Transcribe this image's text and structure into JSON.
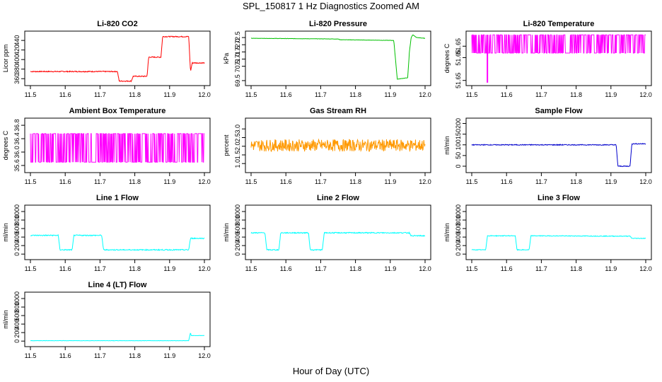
{
  "title": "SPL_150817  1 Hz Diagnostics Zoomed AM",
  "xlabel": "Hour of Day (UTC)",
  "chart_data": [
    {
      "type": "line",
      "title": "Li-820 CO2",
      "ylabel": "Licor ppm",
      "color": "#ff0000",
      "xlim": [
        11.5,
        12.0
      ],
      "ylim": [
        350,
        455
      ],
      "yticks": [
        "360",
        "380",
        "400",
        "420",
        "440"
      ],
      "yvals": [
        360,
        380,
        400,
        420,
        440
      ],
      "xticks": [
        "11.5",
        "11.6",
        "11.7",
        "11.8",
        "11.9",
        "12.0"
      ],
      "series": [
        {
          "x": [
            11.5,
            11.75,
            11.755,
            11.79,
            11.795,
            11.835,
            11.84,
            11.875,
            11.88,
            11.955,
            11.96,
            11.965,
            12.0
          ],
          "values": [
            375,
            375,
            355,
            355,
            365,
            365,
            405,
            405,
            448,
            448,
            375,
            393,
            393
          ],
          "noise": 1.0
        }
      ]
    },
    {
      "type": "line",
      "title": "Li-820 Pressure",
      "ylabel": "kPa",
      "color": "#00c000",
      "xlim": [
        11.5,
        12.0
      ],
      "ylim": [
        69.3,
        72.8
      ],
      "yticks": [
        "69.5",
        "70.5",
        "71.0",
        "71.5",
        "72.0",
        "72.5"
      ],
      "yvals": [
        69.5,
        70.5,
        71.0,
        71.5,
        72.0,
        72.5
      ],
      "xticks": [
        "11.5",
        "11.6",
        "11.7",
        "11.8",
        "11.9",
        "12.0"
      ],
      "series": [
        {
          "x": [
            11.5,
            11.75,
            11.755,
            11.91,
            11.915,
            11.92,
            11.95,
            11.955,
            11.96,
            11.965,
            11.975,
            12.0
          ],
          "values": [
            72.45,
            72.4,
            72.35,
            72.3,
            71.0,
            69.6,
            69.7,
            71.5,
            72.5,
            72.7,
            72.5,
            72.45
          ],
          "noise": 0.01
        }
      ]
    },
    {
      "type": "line",
      "title": "Li-820 Temperature",
      "ylabel": "degrees C",
      "color": "#ff00ff",
      "xlim": [
        11.5,
        12.0
      ],
      "ylim": [
        51.6496,
        51.6562
      ],
      "yticks": [
        "51.65",
        "51.65",
        "51.65"
      ],
      "yvals": [
        51.65,
        51.653,
        51.6545
      ],
      "xticks": [
        "11.5",
        "11.6",
        "11.7",
        "11.8",
        "11.9",
        "12.0"
      ],
      "series": [
        {
          "x": [
            11.5,
            12.0
          ],
          "values": [
            51.6535,
            51.6535
          ],
          "noise": 0.0,
          "binary": [
            51.6536,
            51.656
          ],
          "dip": [
            11.545,
            51.6497
          ]
        }
      ]
    },
    {
      "type": "line",
      "title": "Ambient Box Temperature",
      "ylabel": "degrees C",
      "color": "#ff00ff",
      "xlim": [
        11.5,
        12.0
      ],
      "ylim": [
        35.45,
        36.95
      ],
      "yticks": [
        "35.6",
        "36.0",
        "36.4",
        "36.8"
      ],
      "yvals": [
        35.6,
        36.0,
        36.4,
        36.8
      ],
      "xticks": [
        "11.5",
        "11.6",
        "11.7",
        "11.8",
        "11.9",
        "12.0"
      ],
      "series": [
        {
          "x": [
            11.5,
            12.0
          ],
          "values": [
            36.1,
            36.1
          ],
          "noise": 0.0,
          "binary": [
            35.7,
            36.55
          ]
        }
      ]
    },
    {
      "type": "line",
      "title": "Gas Stream RH",
      "ylabel": "percent",
      "color": "#ff9900",
      "xlim": [
        11.5,
        12.0
      ],
      "ylim": [
        0.6,
        3.5
      ],
      "yticks": [
        "1.0",
        "1.5",
        "2.0",
        "2.5",
        "3.0"
      ],
      "yvals": [
        1.0,
        1.5,
        2.0,
        2.5,
        3.0
      ],
      "xticks": [
        "11.5",
        "11.6",
        "11.7",
        "11.8",
        "11.9",
        "12.0"
      ],
      "series": [
        {
          "x": [
            11.5,
            12.0
          ],
          "values": [
            2.05,
            2.05
          ],
          "noise": 0.35
        }
      ]
    },
    {
      "type": "line",
      "title": "Sample Flow",
      "ylabel": "ml/min",
      "color": "#0000cc",
      "xlim": [
        11.5,
        12.0
      ],
      "ylim": [
        -20,
        215
      ],
      "yticks": [
        "0",
        "50",
        "100",
        "150",
        "200"
      ],
      "yvals": [
        0,
        50,
        100,
        150,
        200
      ],
      "xticks": [
        "11.5",
        "11.6",
        "11.7",
        "11.8",
        "11.9",
        "12.0"
      ],
      "series": [
        {
          "x": [
            11.5,
            11.915,
            11.92,
            11.955,
            11.96,
            12.0
          ],
          "values": [
            100,
            100,
            0,
            0,
            105,
            105
          ],
          "noise": 2
        }
      ]
    },
    {
      "type": "line",
      "title": "Line 1 Flow",
      "ylabel": "ml/min",
      "color": "#00ffff",
      "xlim": [
        11.5,
        12.0
      ],
      "ylim": [
        -80,
        1100
      ],
      "yticks": [
        "0",
        "200",
        "400",
        "600",
        "800",
        "1000"
      ],
      "yvals": [
        0,
        200,
        400,
        600,
        800,
        1000
      ],
      "xticks": [
        "11.5",
        "11.6",
        "11.7",
        "11.8",
        "11.9",
        "12.0"
      ],
      "series": [
        {
          "x": [
            11.5,
            11.58,
            11.585,
            11.62,
            11.625,
            11.705,
            11.71,
            11.955,
            11.96,
            12.0
          ],
          "values": [
            440,
            440,
            100,
            100,
            440,
            440,
            100,
            100,
            370,
            370
          ],
          "noise": 12
        }
      ]
    },
    {
      "type": "line",
      "title": "Line 2 Flow",
      "ylabel": "ml/min",
      "color": "#00ffff",
      "xlim": [
        11.5,
        12.0
      ],
      "ylim": [
        -80,
        1100
      ],
      "yticks": [
        "0",
        "200",
        "400",
        "600",
        "800",
        "1000"
      ],
      "yvals": [
        0,
        200,
        400,
        600,
        800,
        1000
      ],
      "xticks": [
        "11.5",
        "11.6",
        "11.7",
        "11.8",
        "11.9",
        "12.0"
      ],
      "series": [
        {
          "x": [
            11.5,
            11.54,
            11.545,
            11.58,
            11.585,
            11.665,
            11.67,
            11.705,
            11.71,
            11.955,
            11.96,
            12.0
          ],
          "values": [
            500,
            500,
            100,
            100,
            500,
            500,
            100,
            100,
            500,
            500,
            430,
            430
          ],
          "noise": 12
        }
      ]
    },
    {
      "type": "line",
      "title": "Line 3 Flow",
      "ylabel": "ml/min",
      "color": "#00ffff",
      "xlim": [
        11.5,
        12.0
      ],
      "ylim": [
        -80,
        1100
      ],
      "yticks": [
        "0",
        "200",
        "400",
        "600",
        "800",
        "1000"
      ],
      "yvals": [
        0,
        200,
        400,
        600,
        800,
        1000
      ],
      "xticks": [
        "11.5",
        "11.6",
        "11.7",
        "11.8",
        "11.9",
        "12.0"
      ],
      "series": [
        {
          "x": [
            11.5,
            11.54,
            11.545,
            11.625,
            11.63,
            11.665,
            11.67,
            11.955,
            11.96,
            12.0
          ],
          "values": [
            100,
            100,
            430,
            430,
            100,
            100,
            430,
            420,
            370,
            370
          ],
          "noise": 8
        }
      ]
    },
    {
      "type": "line",
      "title": "Line 4 (LT) Flow",
      "ylabel": "ml/min",
      "color": "#00ffff",
      "xlim": [
        11.5,
        12.0
      ],
      "ylim": [
        -80,
        1100
      ],
      "yticks": [
        "0",
        "200",
        "400",
        "600",
        "800",
        "1000"
      ],
      "yvals": [
        0,
        200,
        400,
        600,
        800,
        1000
      ],
      "xticks": [
        "11.5",
        "11.6",
        "11.7",
        "11.8",
        "11.9",
        "12.0"
      ],
      "series": [
        {
          "x": [
            11.5,
            11.955,
            11.96,
            11.962,
            11.97,
            12.0
          ],
          "values": [
            10,
            10,
            200,
            130,
            130,
            130
          ],
          "noise": 3
        }
      ]
    }
  ]
}
